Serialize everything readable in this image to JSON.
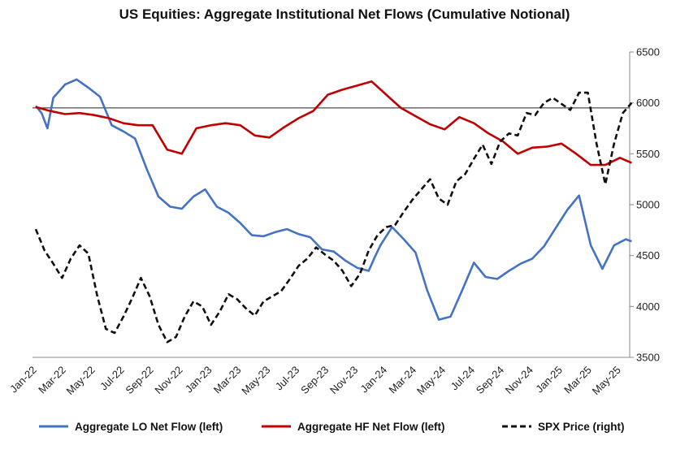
{
  "chart_data": {
    "type": "line",
    "title": "US Equities: Aggregate Institutional Net Flows (Cumulative Notional)",
    "x_tick_labels": [
      "Jan-22",
      "Mar-22",
      "May-22",
      "Jul-22",
      "Sep-22",
      "Nov-22",
      "Jan-23",
      "Mar-23",
      "May-23",
      "Jul-23",
      "Sep-23",
      "Nov-23",
      "Jan-24",
      "Mar-24",
      "May-24",
      "Jul-24",
      "Sep-24",
      "Nov-24",
      "Jan-25",
      "Mar-25",
      "May-25"
    ],
    "y_right_ticks": [
      "3500",
      "4000",
      "4500",
      "5000",
      "5500",
      "6000",
      "6500"
    ],
    "y_right_range": [
      3500,
      6500
    ],
    "left_axis_labels": "none",
    "reference_line_level_right": 5950,
    "series": [
      {
        "name": "Aggregate LO Net Flow (left)",
        "axis": "left",
        "color": "#4472C4",
        "style": "solid",
        "x": [
          0,
          0.2,
          0.4,
          0.6,
          1.0,
          1.4,
          1.8,
          2.2,
          2.6,
          3.0,
          3.4,
          3.8,
          4.2,
          4.6,
          5.0,
          5.4,
          5.8,
          6.2,
          6.6,
          7.0,
          7.4,
          7.8,
          8.2,
          8.6,
          9.0,
          9.4,
          9.8,
          10.2,
          10.6,
          11.0,
          11.4,
          11.6,
          11.8,
          12.2,
          12.6,
          13.0,
          13.4,
          13.8,
          14.2,
          14.6,
          15.0,
          15.4,
          15.8,
          16.2,
          16.6,
          17.0,
          17.4,
          17.8,
          18.2,
          18.6,
          19.0,
          19.4,
          19.8,
          20.2,
          20.4
        ],
        "values": [
          5970,
          5900,
          5750,
          6050,
          6180,
          6230,
          6150,
          6060,
          5780,
          5720,
          5650,
          5350,
          5080,
          4980,
          4960,
          5080,
          5150,
          4980,
          4920,
          4820,
          4700,
          4690,
          4730,
          4760,
          4710,
          4680,
          4560,
          4540,
          4450,
          4380,
          4350,
          4480,
          4600,
          4780,
          4660,
          4530,
          4160,
          3870,
          3900,
          4160,
          4430,
          4290,
          4270,
          4350,
          4420,
          4470,
          4590,
          4770,
          4950,
          5090,
          4600,
          4370,
          4600,
          4660,
          4640
        ]
      },
      {
        "name": "Aggregate HF Net Flow (left)",
        "axis": "left",
        "color": "#C00000",
        "style": "solid",
        "x": [
          0,
          0.5,
          1.0,
          1.5,
          2.0,
          2.5,
          3.0,
          3.5,
          4.0,
          4.5,
          5.0,
          5.5,
          6.0,
          6.5,
          7.0,
          7.5,
          8.0,
          8.5,
          9.0,
          9.5,
          10.0,
          10.5,
          11.0,
          11.5,
          12.0,
          12.5,
          13.0,
          13.5,
          14.0,
          14.5,
          15.0,
          15.5,
          16.0,
          16.5,
          17.0,
          17.5,
          18.0,
          18.5,
          19.0,
          19.5,
          20.0,
          20.4
        ],
        "values": [
          5960,
          5920,
          5890,
          5900,
          5880,
          5850,
          5800,
          5780,
          5780,
          5540,
          5500,
          5750,
          5780,
          5800,
          5780,
          5680,
          5660,
          5760,
          5850,
          5920,
          6080,
          6130,
          6170,
          6210,
          6080,
          5950,
          5870,
          5790,
          5740,
          5860,
          5800,
          5700,
          5620,
          5500,
          5560,
          5570,
          5600,
          5500,
          5390,
          5390,
          5460,
          5410
        ]
      },
      {
        "name": "SPX Price (right)",
        "axis": "right",
        "color": "#111111",
        "style": "dashed",
        "x": [
          0,
          0.3,
          0.6,
          0.9,
          1.2,
          1.5,
          1.8,
          2.1,
          2.4,
          2.7,
          3.0,
          3.3,
          3.6,
          3.9,
          4.2,
          4.5,
          4.8,
          5.1,
          5.4,
          5.7,
          6.0,
          6.3,
          6.6,
          6.9,
          7.2,
          7.5,
          7.8,
          8.1,
          8.4,
          8.7,
          9.0,
          9.3,
          9.6,
          9.9,
          10.2,
          10.5,
          10.8,
          11.1,
          11.4,
          11.7,
          12.0,
          12.3,
          12.6,
          12.9,
          13.2,
          13.5,
          13.8,
          14.1,
          14.4,
          14.7,
          15.0,
          15.3,
          15.6,
          15.9,
          16.2,
          16.5,
          16.8,
          17.1,
          17.4,
          17.7,
          18.0,
          18.3,
          18.6,
          18.9,
          19.2,
          19.5,
          19.8,
          20.1,
          20.4
        ],
        "values": [
          4760,
          4550,
          4420,
          4280,
          4470,
          4600,
          4520,
          4110,
          3780,
          3740,
          3900,
          4080,
          4280,
          4100,
          3820,
          3650,
          3700,
          3900,
          4050,
          4000,
          3820,
          3950,
          4120,
          4070,
          3980,
          3910,
          4050,
          4100,
          4150,
          4270,
          4400,
          4470,
          4580,
          4510,
          4450,
          4350,
          4200,
          4320,
          4550,
          4700,
          4780,
          4800,
          4930,
          5050,
          5150,
          5250,
          5060,
          5000,
          5230,
          5300,
          5450,
          5590,
          5400,
          5620,
          5700,
          5680,
          5900,
          5880,
          6000,
          6050,
          5990,
          5930,
          6100,
          6100,
          5600,
          5200,
          5600,
          5900,
          6000
        ]
      }
    ],
    "legend": [
      {
        "label": "Aggregate LO Net Flow (left)",
        "color": "#4472C4",
        "style": "solid"
      },
      {
        "label": "Aggregate HF Net Flow (left)",
        "color": "#C00000",
        "style": "solid"
      },
      {
        "label": "SPX Price (right)",
        "color": "#111111",
        "style": "dashed"
      }
    ],
    "legend_position": "bottom"
  }
}
